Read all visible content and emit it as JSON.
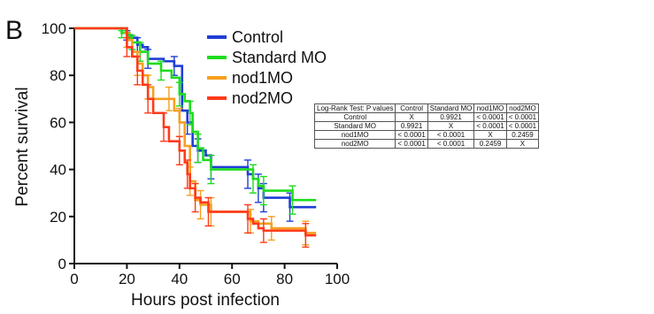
{
  "panel_letter": "B",
  "chart_data": {
    "type": "line",
    "step": true,
    "xlabel": "Hours post infection",
    "ylabel": "Percent survival",
    "xlim": [
      0,
      100
    ],
    "ylim": [
      0,
      100
    ],
    "xticks": [
      0,
      20,
      40,
      60,
      80,
      100
    ],
    "yticks": [
      0,
      20,
      40,
      60,
      80,
      100
    ],
    "grid": false,
    "legend_position": "top-right",
    "series": [
      {
        "name": "Control",
        "color": "#1f3fd6",
        "points": [
          [
            0,
            100
          ],
          [
            18,
            100
          ],
          [
            20,
            97
          ],
          [
            22,
            96
          ],
          [
            24,
            93
          ],
          [
            26,
            92
          ],
          [
            28,
            87
          ],
          [
            30,
            87
          ],
          [
            34,
            86
          ],
          [
            38,
            84
          ],
          [
            41,
            65
          ],
          [
            43,
            60
          ],
          [
            45,
            50
          ],
          [
            47,
            48
          ],
          [
            50,
            46
          ],
          [
            52,
            41
          ],
          [
            65,
            41
          ],
          [
            66,
            38
          ],
          [
            68,
            36
          ],
          [
            70,
            32
          ],
          [
            72,
            28
          ],
          [
            78,
            28
          ],
          [
            82,
            24
          ],
          [
            92,
            24
          ]
        ],
        "error_x": [
          [
            20,
            97,
            99,
            95
          ],
          [
            24,
            93,
            96,
            90
          ],
          [
            28,
            87,
            91,
            83
          ],
          [
            38,
            84,
            88,
            80
          ],
          [
            43,
            60,
            65,
            55
          ],
          [
            47,
            48,
            53,
            43
          ],
          [
            52,
            41,
            46,
            36
          ],
          [
            66,
            38,
            44,
            32
          ],
          [
            70,
            32,
            38,
            26
          ],
          [
            72,
            28,
            34,
            22
          ],
          [
            82,
            24,
            30,
            18
          ]
        ]
      },
      {
        "name": "Standard MO",
        "color": "#1edc1e",
        "points": [
          [
            0,
            100
          ],
          [
            16,
            100
          ],
          [
            18,
            98
          ],
          [
            21,
            96
          ],
          [
            22,
            94
          ],
          [
            25,
            90
          ],
          [
            28,
            85
          ],
          [
            33,
            82
          ],
          [
            37,
            79
          ],
          [
            40,
            72
          ],
          [
            42,
            69
          ],
          [
            44,
            64
          ],
          [
            45,
            56
          ],
          [
            47,
            49
          ],
          [
            49,
            44
          ],
          [
            52,
            40
          ],
          [
            65,
            40
          ],
          [
            68,
            36
          ],
          [
            70,
            33
          ],
          [
            72,
            31
          ],
          [
            80,
            31
          ],
          [
            83,
            27
          ],
          [
            92,
            27
          ]
        ],
        "error_x": [
          [
            18,
            98,
            99,
            96
          ],
          [
            22,
            94,
            97,
            91
          ],
          [
            25,
            90,
            94,
            86
          ],
          [
            33,
            82,
            86,
            78
          ],
          [
            40,
            72,
            77,
            67
          ],
          [
            44,
            64,
            69,
            59
          ],
          [
            47,
            49,
            55,
            43
          ],
          [
            52,
            40,
            46,
            34
          ],
          [
            68,
            36,
            42,
            30
          ],
          [
            72,
            31,
            37,
            25
          ],
          [
            83,
            27,
            33,
            21
          ]
        ]
      },
      {
        "name": "nod1MO",
        "color": "#f5a020",
        "points": [
          [
            0,
            100
          ],
          [
            16,
            100
          ],
          [
            20,
            95
          ],
          [
            22,
            90
          ],
          [
            24,
            85
          ],
          [
            26,
            80
          ],
          [
            28,
            75
          ],
          [
            30,
            70
          ],
          [
            36,
            70
          ],
          [
            38,
            65
          ],
          [
            40,
            60
          ],
          [
            42,
            50
          ],
          [
            44,
            35
          ],
          [
            46,
            27
          ],
          [
            48,
            25
          ],
          [
            52,
            22
          ],
          [
            65,
            22
          ],
          [
            67,
            18
          ],
          [
            70,
            17
          ],
          [
            75,
            15
          ],
          [
            85,
            15
          ],
          [
            88,
            13
          ],
          [
            92,
            13
          ]
        ],
        "error_x": [
          [
            20,
            95,
            98,
            92
          ],
          [
            24,
            85,
            90,
            80
          ],
          [
            28,
            75,
            80,
            70
          ],
          [
            36,
            70,
            75,
            65
          ],
          [
            40,
            60,
            66,
            54
          ],
          [
            44,
            35,
            41,
            29
          ],
          [
            48,
            25,
            31,
            19
          ],
          [
            52,
            22,
            28,
            16
          ],
          [
            67,
            18,
            23,
            13
          ],
          [
            75,
            15,
            20,
            10
          ],
          [
            88,
            13,
            18,
            8
          ]
        ]
      },
      {
        "name": "nod2MO",
        "color": "#ff3a1a",
        "points": [
          [
            0,
            100
          ],
          [
            18,
            100
          ],
          [
            20,
            92
          ],
          [
            22,
            88
          ],
          [
            24,
            82
          ],
          [
            26,
            76
          ],
          [
            28,
            70
          ],
          [
            30,
            64
          ],
          [
            34,
            58
          ],
          [
            36,
            52
          ],
          [
            40,
            48
          ],
          [
            42,
            43
          ],
          [
            43,
            38
          ],
          [
            44,
            32
          ],
          [
            46,
            28
          ],
          [
            48,
            26
          ],
          [
            51,
            22
          ],
          [
            65,
            22
          ],
          [
            66,
            19
          ],
          [
            68,
            17
          ],
          [
            70,
            15
          ],
          [
            72,
            14
          ],
          [
            85,
            14
          ],
          [
            88,
            12
          ],
          [
            92,
            12
          ]
        ],
        "error_x": [
          [
            20,
            92,
            96,
            88
          ],
          [
            24,
            82,
            88,
            76
          ],
          [
            28,
            70,
            76,
            64
          ],
          [
            34,
            58,
            64,
            52
          ],
          [
            40,
            48,
            54,
            42
          ],
          [
            43,
            38,
            44,
            32
          ],
          [
            46,
            28,
            34,
            22
          ],
          [
            51,
            22,
            28,
            16
          ],
          [
            66,
            19,
            25,
            13
          ],
          [
            72,
            14,
            19,
            9
          ],
          [
            88,
            12,
            17,
            7
          ]
        ]
      }
    ]
  },
  "pvalue_table": {
    "header": [
      "Log-Rank Test: P values",
      "Control",
      "Standard MO",
      "nod1MO",
      "nod2MO"
    ],
    "rows": [
      [
        "Control",
        "X",
        "0.9921",
        "< 0.0001",
        "< 0.0001"
      ],
      [
        "Standard MO",
        "0.9921",
        "X",
        "< 0.0001",
        "< 0.0001"
      ],
      [
        "nod1MO",
        "< 0.0001",
        "< 0.0001",
        "X",
        "0.2459"
      ],
      [
        "nod2MO",
        "< 0.0001",
        "< 0.0001",
        "0.2459",
        "X"
      ]
    ]
  }
}
